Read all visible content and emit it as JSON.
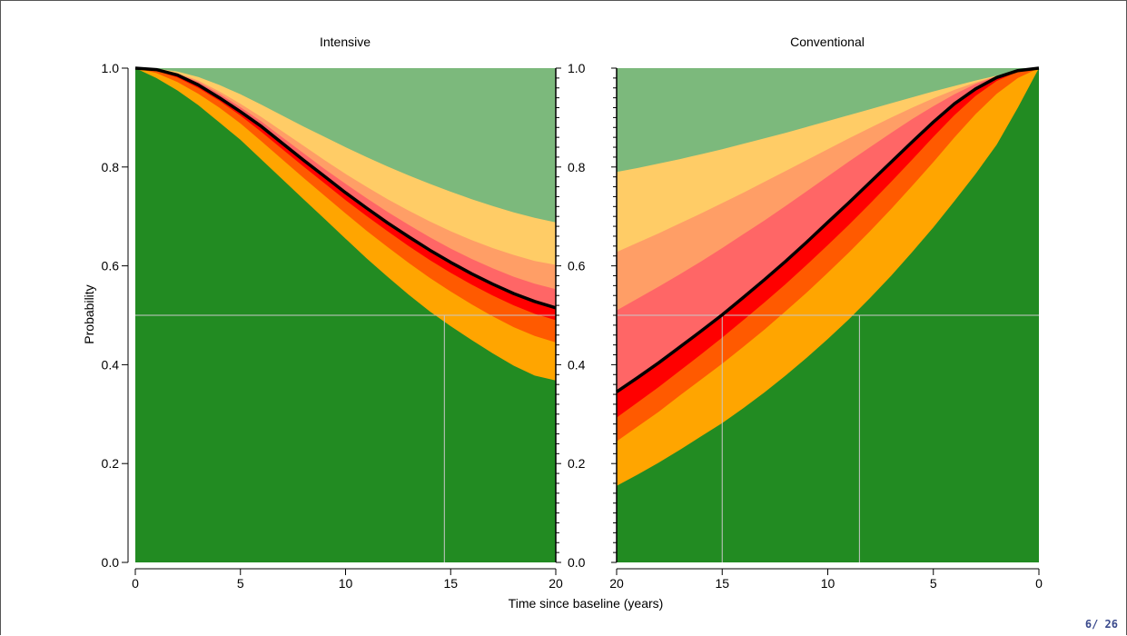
{
  "page": {
    "number": "6/ 26"
  },
  "colors": {
    "dark_green": "#228B22",
    "light_green": "#7CB97C",
    "orange": "#FFA500",
    "dark_orange": "#FF5A00",
    "red": "#FF0000",
    "salmon": "#FF6666",
    "light_salmon": "#FF9E66",
    "light_orange": "#FFCC66",
    "black": "#000000",
    "reference_line": "#C8C8C8"
  },
  "chart_data": {
    "type": "area",
    "ylabel": "Probability",
    "xlabel": "Time since baseline (years)",
    "ylim": [
      0,
      1
    ],
    "yticks": [
      "0.0",
      "0.2",
      "0.4",
      "0.6",
      "0.8",
      "1.0"
    ],
    "xticks_left": [
      "0",
      "5",
      "10",
      "15",
      "20"
    ],
    "xticks_right": [
      "20",
      "15",
      "10",
      "5",
      "0"
    ],
    "reference_y": 0.5,
    "panels": [
      {
        "title": "Intensive",
        "x": [
          0,
          1,
          2,
          3,
          4,
          5,
          6,
          7,
          8,
          9,
          10,
          11,
          12,
          13,
          14,
          15,
          16,
          17,
          18,
          19,
          20
        ],
        "reference_x": [
          14.7
        ],
        "bands": [
          {
            "color": "#228B22",
            "top": [
              1.0,
              0.98,
              0.955,
              0.925,
              0.89,
              0.855,
              0.815,
              0.775,
              0.735,
              0.695,
              0.655,
              0.615,
              0.578,
              0.542,
              0.508,
              0.478,
              0.45,
              0.423,
              0.398,
              0.378,
              0.368
            ]
          },
          {
            "color": "#FFA500",
            "top": [
              1.0,
              0.99,
              0.972,
              0.948,
              0.92,
              0.888,
              0.852,
              0.815,
              0.778,
              0.742,
              0.706,
              0.671,
              0.638,
              0.606,
              0.576,
              0.548,
              0.522,
              0.498,
              0.476,
              0.458,
              0.445
            ]
          },
          {
            "color": "#FF5A00",
            "top": [
              1.0,
              0.995,
              0.981,
              0.96,
              0.934,
              0.904,
              0.871,
              0.836,
              0.801,
              0.767,
              0.733,
              0.701,
              0.67,
              0.64,
              0.612,
              0.586,
              0.562,
              0.54,
              0.52,
              0.503,
              0.49
            ]
          },
          {
            "color": "#FF0000",
            "top": [
              1.0,
              0.997,
              0.986,
              0.966,
              0.94,
              0.912,
              0.882,
              0.848,
              0.814,
              0.781,
              0.748,
              0.717,
              0.687,
              0.659,
              0.632,
              0.607,
              0.584,
              0.563,
              0.544,
              0.528,
              0.515
            ]
          },
          {
            "color": "#FF6666",
            "top": [
              1.0,
              0.998,
              0.989,
              0.972,
              0.948,
              0.921,
              0.892,
              0.86,
              0.828,
              0.796,
              0.766,
              0.737,
              0.709,
              0.683,
              0.658,
              0.635,
              0.614,
              0.595,
              0.578,
              0.564,
              0.553
            ]
          },
          {
            "color": "#FF9E66",
            "top": [
              1.0,
              0.998,
              0.99,
              0.975,
              0.953,
              0.928,
              0.901,
              0.872,
              0.843,
              0.814,
              0.786,
              0.76,
              0.735,
              0.712,
              0.69,
              0.67,
              0.652,
              0.636,
              0.622,
              0.61,
              0.602
            ]
          },
          {
            "color": "#FFCC66",
            "top": [
              1.0,
              0.999,
              0.993,
              0.982,
              0.966,
              0.947,
              0.926,
              0.904,
              0.882,
              0.861,
              0.84,
              0.82,
              0.801,
              0.783,
              0.766,
              0.75,
              0.735,
              0.721,
              0.708,
              0.697,
              0.688
            ]
          },
          {
            "color": "#7CB97C",
            "top": [
              1.0,
              1.0,
              1.0,
              1.0,
              1.0,
              1.0,
              1.0,
              1.0,
              1.0,
              1.0,
              1.0,
              1.0,
              1.0,
              1.0,
              1.0,
              1.0,
              1.0,
              1.0,
              1.0,
              1.0,
              1.0
            ]
          }
        ],
        "curve": [
          1.0,
          0.997,
          0.986,
          0.966,
          0.94,
          0.912,
          0.882,
          0.848,
          0.814,
          0.781,
          0.748,
          0.717,
          0.687,
          0.659,
          0.632,
          0.607,
          0.584,
          0.563,
          0.544,
          0.528,
          0.515
        ]
      },
      {
        "title": "Conventional",
        "x": [
          20,
          19,
          18,
          17,
          16,
          15,
          14,
          13,
          12,
          11,
          10,
          9,
          8,
          7,
          6,
          5,
          4,
          3,
          2,
          1,
          0
        ],
        "reference_x": [
          15,
          8.5
        ],
        "bands": [
          {
            "color": "#228B22",
            "top": [
              0.155,
              0.178,
              0.202,
              0.228,
              0.255,
              0.282,
              0.312,
              0.344,
              0.378,
              0.414,
              0.452,
              0.492,
              0.535,
              0.58,
              0.628,
              0.678,
              0.731,
              0.786,
              0.845,
              0.92,
              1.0
            ]
          },
          {
            "color": "#FFA500",
            "top": [
              0.245,
              0.275,
              0.305,
              0.338,
              0.37,
              0.402,
              0.436,
              0.471,
              0.508,
              0.546,
              0.586,
              0.627,
              0.67,
              0.715,
              0.762,
              0.81,
              0.86,
              0.907,
              0.948,
              0.98,
              1.0
            ]
          },
          {
            "color": "#FF5A00",
            "top": [
              0.293,
              0.324,
              0.355,
              0.388,
              0.421,
              0.455,
              0.49,
              0.526,
              0.563,
              0.602,
              0.642,
              0.683,
              0.726,
              0.77,
              0.815,
              0.861,
              0.905,
              0.944,
              0.974,
              0.993,
              1.0
            ]
          },
          {
            "color": "#FF0000",
            "top": [
              0.345,
              0.374,
              0.404,
              0.436,
              0.468,
              0.501,
              0.536,
              0.572,
              0.609,
              0.648,
              0.688,
              0.728,
              0.769,
              0.81,
              0.851,
              0.891,
              0.928,
              0.958,
              0.981,
              0.995,
              1.0
            ]
          },
          {
            "color": "#FF6666",
            "top": [
              0.51,
              0.534,
              0.558,
              0.583,
              0.609,
              0.636,
              0.664,
              0.692,
              0.721,
              0.751,
              0.781,
              0.811,
              0.84,
              0.869,
              0.897,
              0.923,
              0.947,
              0.968,
              0.984,
              0.995,
              1.0
            ]
          },
          {
            "color": "#FF9E66",
            "top": [
              0.628,
              0.647,
              0.666,
              0.686,
              0.706,
              0.727,
              0.748,
              0.77,
              0.792,
              0.814,
              0.836,
              0.858,
              0.879,
              0.9,
              0.92,
              0.939,
              0.956,
              0.971,
              0.984,
              0.994,
              1.0
            ]
          },
          {
            "color": "#FFCC66",
            "top": [
              0.79,
              0.798,
              0.807,
              0.816,
              0.826,
              0.836,
              0.847,
              0.858,
              0.869,
              0.881,
              0.893,
              0.905,
              0.917,
              0.929,
              0.941,
              0.953,
              0.964,
              0.975,
              0.985,
              0.994,
              1.0
            ]
          },
          {
            "color": "#7CB97C",
            "top": [
              1.0,
              1.0,
              1.0,
              1.0,
              1.0,
              1.0,
              1.0,
              1.0,
              1.0,
              1.0,
              1.0,
              1.0,
              1.0,
              1.0,
              1.0,
              1.0,
              1.0,
              1.0,
              1.0,
              1.0,
              1.0
            ]
          }
        ],
        "curve": [
          0.345,
          0.374,
          0.404,
          0.436,
          0.468,
          0.501,
          0.536,
          0.572,
          0.609,
          0.648,
          0.688,
          0.728,
          0.769,
          0.81,
          0.851,
          0.891,
          0.928,
          0.958,
          0.981,
          0.995,
          1.0
        ]
      }
    ]
  }
}
